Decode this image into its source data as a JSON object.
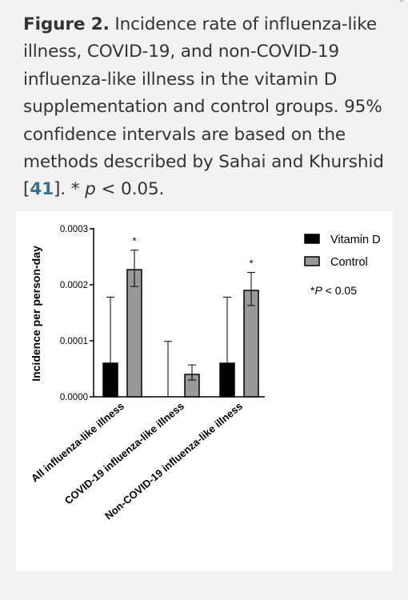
{
  "caption": {
    "figure_label": "Figure 2.",
    "text_main": "Incidence rate of influenza-like illness, COVID-19, and non-COVID-19 influenza-like illness in the vitamin D supplementation and control groups. 95% confidence intervals are based on the methods described by Sahai and Khurshid",
    "ref_open": "[",
    "ref_number": "41",
    "ref_close": "].",
    "note_star": "* ",
    "note_p": "p",
    "note_rest": " < 0.05."
  },
  "chart_data": {
    "type": "bar",
    "title": "",
    "xlabel": "",
    "ylabel": "Incidence per person-day",
    "ylim": [
      0,
      0.0003
    ],
    "yticks": [
      "0.0000",
      "0.0001",
      "0.0002",
      "0.0003"
    ],
    "categories": [
      "All influenza-like illness",
      "COVID-19 influenza-like illness",
      "Non-COVID-19 influenza-like illness"
    ],
    "series": [
      {
        "name": "Vitamin D",
        "color": "#000000",
        "values": [
          6e-05,
          0.0,
          6e-05
        ],
        "error_upper": [
          0.000178,
          9.9e-05,
          0.000178
        ],
        "error_lower": [
          6e-05,
          0.0,
          6e-05
        ]
      },
      {
        "name": "Control",
        "color": "#999999",
        "values": [
          0.000227,
          4e-05,
          0.00019
        ],
        "error_upper": [
          0.000262,
          5.7e-05,
          0.000222
        ],
        "error_lower": [
          0.000197,
          3e-05,
          0.000163
        ]
      }
    ],
    "significance_marks": [
      "*",
      "",
      "*"
    ],
    "legend_position": "top-right",
    "legend_note_star": "*",
    "legend_note_p": "P",
    "legend_note_rest": " < 0.05",
    "grid": false
  }
}
